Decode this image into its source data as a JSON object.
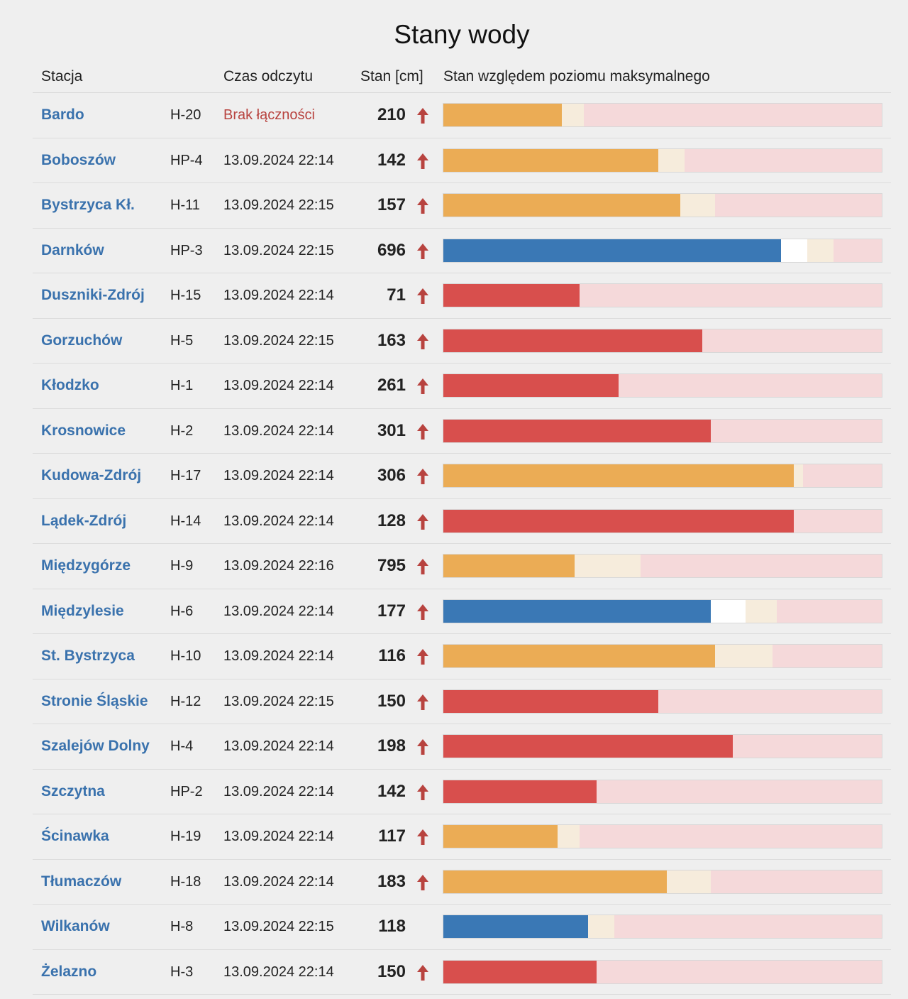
{
  "page": {
    "title": "Stany wody"
  },
  "header": {
    "station": "Stacja",
    "time": "Czas odczytu",
    "level": "Stan [cm]",
    "bar": "Stan względem poziomu maksymalnego"
  },
  "colors": {
    "orange": "#ebac55",
    "blue": "#3a78b5",
    "red": "#d84f4d",
    "max_bg": "#f5d9da",
    "warn_bg": "#f6ecdc",
    "white": "#ffffff",
    "arrow": "#b8433f",
    "link": "#3a72ad"
  },
  "rows": [
    {
      "station": "Bardo",
      "code": "H-20",
      "time": "Brak łączności",
      "time_error": true,
      "level": "210",
      "rising": true,
      "state": "orange",
      "fill": 0.27,
      "white": 0,
      "warn": 0.32
    },
    {
      "station": "Boboszów",
      "code": "HP-4",
      "time": "13.09.2024 22:14",
      "level": "142",
      "rising": true,
      "state": "orange",
      "fill": 0.49,
      "white": 0,
      "warn": 0.55
    },
    {
      "station": "Bystrzyca Kł.",
      "code": "H-11",
      "time": "13.09.2024 22:15",
      "level": "157",
      "rising": true,
      "state": "orange",
      "fill": 0.54,
      "white": 0,
      "warn": 0.62
    },
    {
      "station": "Darnków",
      "code": "HP-3",
      "time": "13.09.2024 22:15",
      "level": "696",
      "rising": true,
      "state": "blue",
      "fill": 0.77,
      "white": 0.83,
      "warn": 0.89
    },
    {
      "station": "Duszniki-Zdrój",
      "code": "H-15",
      "time": "13.09.2024 22:14",
      "level": "71",
      "rising": true,
      "state": "red",
      "fill": 0.31,
      "white": 0,
      "warn": 0
    },
    {
      "station": "Gorzuchów",
      "code": "H-5",
      "time": "13.09.2024 22:15",
      "level": "163",
      "rising": true,
      "state": "red",
      "fill": 0.59,
      "white": 0,
      "warn": 0
    },
    {
      "station": "Kłodzko",
      "code": "H-1",
      "time": "13.09.2024 22:14",
      "level": "261",
      "rising": true,
      "state": "red",
      "fill": 0.4,
      "white": 0,
      "warn": 0
    },
    {
      "station": "Krosnowice",
      "code": "H-2",
      "time": "13.09.2024 22:14",
      "level": "301",
      "rising": true,
      "state": "red",
      "fill": 0.61,
      "white": 0,
      "warn": 0
    },
    {
      "station": "Kudowa-Zdrój",
      "code": "H-17",
      "time": "13.09.2024 22:14",
      "level": "306",
      "rising": true,
      "state": "orange",
      "fill": 0.8,
      "white": 0,
      "warn": 0.82
    },
    {
      "station": "Lądek-Zdrój",
      "code": "H-14",
      "time": "13.09.2024 22:14",
      "level": "128",
      "rising": true,
      "state": "red",
      "fill": 0.8,
      "white": 0,
      "warn": 0
    },
    {
      "station": "Międzygórze",
      "code": "H-9",
      "time": "13.09.2024 22:16",
      "level": "795",
      "rising": true,
      "state": "orange",
      "fill": 0.3,
      "white": 0,
      "warn": 0.45
    },
    {
      "station": "Międzylesie",
      "code": "H-6",
      "time": "13.09.2024 22:14",
      "level": "177",
      "rising": true,
      "state": "blue",
      "fill": 0.61,
      "white": 0.69,
      "warn": 0.76
    },
    {
      "station": "St. Bystrzyca",
      "code": "H-10",
      "time": "13.09.2024 22:14",
      "level": "116",
      "rising": true,
      "state": "orange",
      "fill": 0.62,
      "white": 0,
      "warn": 0.75
    },
    {
      "station": "Stronie Śląskie",
      "code": "H-12",
      "time": "13.09.2024 22:15",
      "level": "150",
      "rising": true,
      "state": "red",
      "fill": 0.49,
      "white": 0,
      "warn": 0
    },
    {
      "station": "Szalejów Dolny",
      "code": "H-4",
      "time": "13.09.2024 22:14",
      "level": "198",
      "rising": true,
      "state": "red",
      "fill": 0.66,
      "white": 0,
      "warn": 0
    },
    {
      "station": "Szczytna",
      "code": "HP-2",
      "time": "13.09.2024 22:14",
      "level": "142",
      "rising": true,
      "state": "red",
      "fill": 0.35,
      "white": 0,
      "warn": 0
    },
    {
      "station": "Ścinawka",
      "code": "H-19",
      "time": "13.09.2024 22:14",
      "level": "117",
      "rising": true,
      "state": "orange",
      "fill": 0.26,
      "white": 0,
      "warn": 0.31
    },
    {
      "station": "Tłumaczów",
      "code": "H-18",
      "time": "13.09.2024 22:14",
      "level": "183",
      "rising": true,
      "state": "orange",
      "fill": 0.51,
      "white": 0,
      "warn": 0.61
    },
    {
      "station": "Wilkanów",
      "code": "H-8",
      "time": "13.09.2024 22:15",
      "level": "118",
      "rising": false,
      "state": "blue",
      "fill": 0.33,
      "white": 0,
      "warn": 0.39
    },
    {
      "station": "Żelazno",
      "code": "H-3",
      "time": "13.09.2024 22:14",
      "level": "150",
      "rising": true,
      "state": "red",
      "fill": 0.35,
      "white": 0,
      "warn": 0
    }
  ]
}
